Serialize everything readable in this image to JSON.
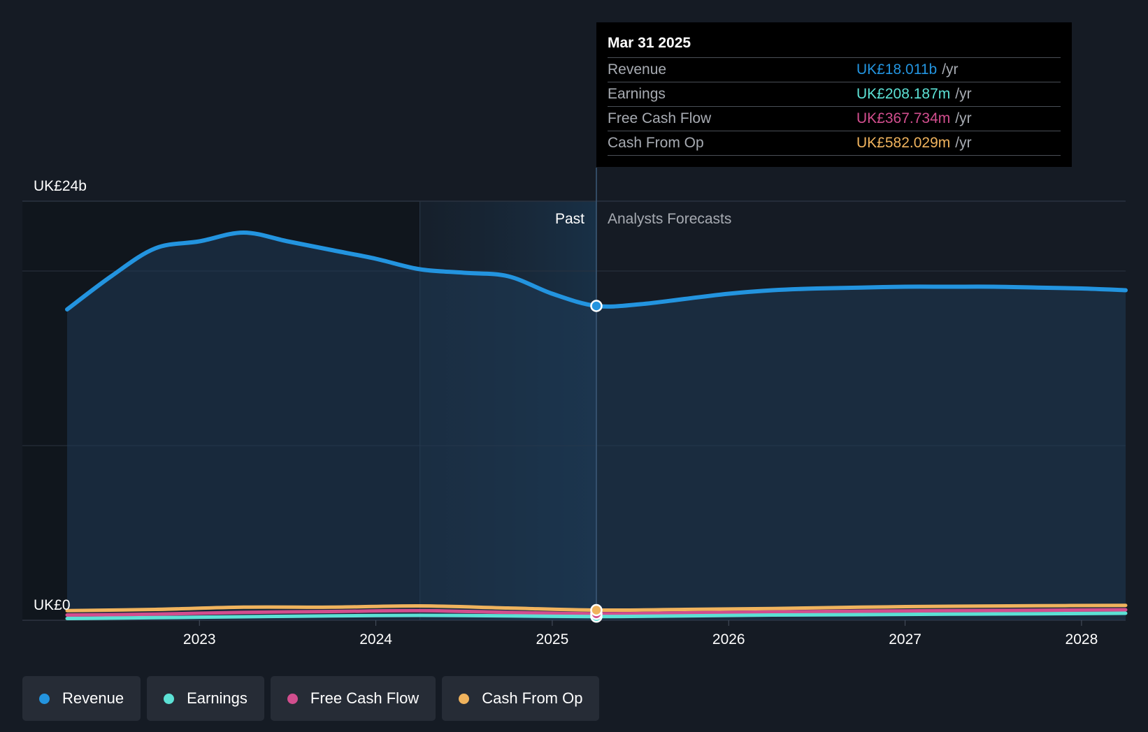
{
  "colors": {
    "background": "#151b24",
    "revenue": "#2394df",
    "earnings": "#5ce1d5",
    "free_cash_flow": "#d24e8e",
    "cash_from_op": "#f0b35d",
    "grid": "#2a3340",
    "muted_text": "#a7abb2"
  },
  "tooltip": {
    "date": "Mar 31 2025",
    "rows": [
      {
        "name": "Revenue",
        "value": "UK£18.011b",
        "unit": "/yr",
        "color_key": "revenue"
      },
      {
        "name": "Earnings",
        "value": "UK£208.187m",
        "unit": "/yr",
        "color_key": "earnings"
      },
      {
        "name": "Free Cash Flow",
        "value": "UK£367.734m",
        "unit": "/yr",
        "color_key": "free_cash_flow"
      },
      {
        "name": "Cash From Op",
        "value": "UK£582.029m",
        "unit": "/yr",
        "color_key": "cash_from_op"
      }
    ]
  },
  "sections": {
    "past_label": "Past",
    "forecast_label": "Analysts Forecasts"
  },
  "legend": [
    {
      "label": "Revenue",
      "color_key": "revenue"
    },
    {
      "label": "Earnings",
      "color_key": "earnings"
    },
    {
      "label": "Free Cash Flow",
      "color_key": "free_cash_flow"
    },
    {
      "label": "Cash From Op",
      "color_key": "cash_from_op"
    }
  ],
  "chart_data": {
    "type": "area",
    "title": "",
    "xlabel": "",
    "ylabel": "",
    "y_unit": "UK£ billions",
    "ylim": [
      0,
      24
    ],
    "xlim": [
      2022.25,
      2028.25
    ],
    "y_axis_labels": [
      {
        "value": 24,
        "label": "UK£24b"
      },
      {
        "value": 0,
        "label": "UK£0"
      }
    ],
    "gridlines": [
      24,
      20,
      10,
      0
    ],
    "x_ticks": [
      {
        "value": 2023,
        "label": "2023"
      },
      {
        "value": 2024,
        "label": "2024"
      },
      {
        "value": 2025,
        "label": "2025"
      },
      {
        "value": 2026,
        "label": "2026"
      },
      {
        "value": 2027,
        "label": "2027"
      },
      {
        "value": 2028,
        "label": "2028"
      }
    ],
    "past_end": 2025.25,
    "highlight_start": 2024.25,
    "highlight_end": 2025.25,
    "marker_x": 2025.25,
    "series": [
      {
        "name": "Revenue",
        "key": "revenue",
        "fill": true,
        "x": [
          2022.25,
          2022.5,
          2022.75,
          2023.0,
          2023.25,
          2023.5,
          2023.75,
          2024.0,
          2024.25,
          2024.5,
          2024.75,
          2025.0,
          2025.25,
          2025.5,
          2025.75,
          2026.0,
          2026.25,
          2026.5,
          2026.75,
          2027.0,
          2027.25,
          2027.5,
          2027.75,
          2028.0,
          2028.25
        ],
        "values": [
          17.8,
          19.7,
          21.3,
          21.7,
          22.2,
          21.7,
          21.2,
          20.7,
          20.1,
          19.9,
          19.7,
          18.7,
          18.0,
          18.1,
          18.4,
          18.7,
          18.9,
          19.0,
          19.05,
          19.1,
          19.1,
          19.1,
          19.05,
          19.0,
          18.9
        ]
      },
      {
        "name": "Cash From Op",
        "key": "cash_from_op",
        "fill": false,
        "x": [
          2022.25,
          2022.75,
          2023.25,
          2023.75,
          2024.25,
          2024.75,
          2025.25,
          2025.75,
          2026.25,
          2026.75,
          2027.25,
          2027.75,
          2028.25
        ],
        "values": [
          0.55,
          0.62,
          0.75,
          0.75,
          0.82,
          0.7,
          0.58,
          0.62,
          0.67,
          0.75,
          0.8,
          0.83,
          0.85
        ]
      },
      {
        "name": "Free Cash Flow",
        "key": "free_cash_flow",
        "fill": false,
        "x": [
          2022.25,
          2022.75,
          2023.25,
          2023.75,
          2024.25,
          2024.75,
          2025.25,
          2025.75,
          2026.25,
          2026.75,
          2027.25,
          2027.75,
          2028.25
        ],
        "values": [
          0.3,
          0.35,
          0.45,
          0.5,
          0.55,
          0.45,
          0.37,
          0.42,
          0.47,
          0.52,
          0.55,
          0.57,
          0.6
        ]
      },
      {
        "name": "Earnings",
        "key": "earnings",
        "fill": false,
        "x": [
          2022.25,
          2022.75,
          2023.25,
          2023.75,
          2024.25,
          2024.75,
          2025.25,
          2025.75,
          2026.25,
          2026.75,
          2027.25,
          2027.75,
          2028.25
        ],
        "values": [
          0.1,
          0.15,
          0.2,
          0.25,
          0.28,
          0.25,
          0.21,
          0.25,
          0.3,
          0.32,
          0.35,
          0.37,
          0.4
        ]
      }
    ]
  }
}
